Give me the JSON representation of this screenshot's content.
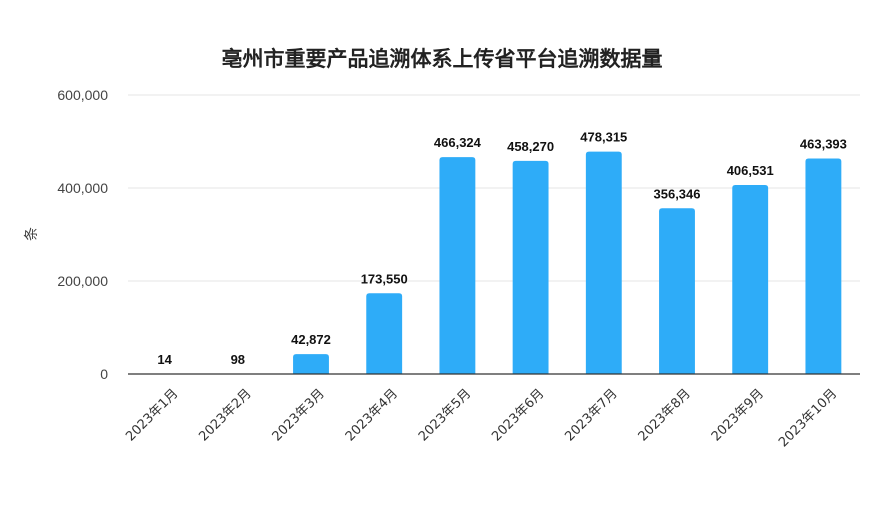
{
  "chart_data": {
    "type": "bar",
    "title": "亳州市重要产品追溯体系上传省平台追溯数据量",
    "xlabel": "",
    "ylabel": "条",
    "categories": [
      "2023年1月",
      "2023年2月",
      "2023年3月",
      "2023年4月",
      "2023年5月",
      "2023年6月",
      "2023年7月",
      "2023年8月",
      "2023年9月",
      "2023年10月"
    ],
    "values": [
      14,
      98,
      42872,
      173550,
      466324,
      458270,
      478315,
      356346,
      406531,
      463393
    ],
    "data_labels": [
      "14",
      "98",
      "42,872",
      "173,550",
      "466,324",
      "458,270",
      "478,315",
      "356,346",
      "406,531",
      "463,393"
    ],
    "ylim": [
      0,
      600000
    ],
    "yticks": [
      0,
      200000,
      400000,
      600000
    ],
    "ytick_labels": [
      "0",
      "200,000",
      "400,000",
      "600,000"
    ],
    "grid": true,
    "legend": "none",
    "colors": {
      "bar": "#2eacf8",
      "grid": "#e6e6e6",
      "axis": "#333333"
    }
  }
}
